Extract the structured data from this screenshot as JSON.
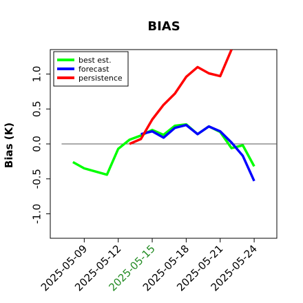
{
  "chart_data": {
    "type": "line",
    "title": "BIAS",
    "xlabel": "",
    "ylabel": "Bias (K)",
    "ylim": [
      -1.35,
      1.35
    ],
    "xlim": [
      "2025-05-06",
      "2025-05-26"
    ],
    "yticks": [
      -1.0,
      -0.5,
      0.0,
      0.5,
      1.0
    ],
    "ytick_labels": [
      "-1.0",
      "-0.5",
      "0.0",
      "0.5",
      "1.0"
    ],
    "xticks": [
      "2025-05-09",
      "2025-05-12",
      "2025-05-15",
      "2025-05-18",
      "2025-05-21",
      "2025-05-24"
    ],
    "xtick_label_colors": [
      "#000000",
      "#000000",
      "#228B22",
      "#000000",
      "#000000",
      "#000000"
    ],
    "zero_line": 0.0,
    "grid": false,
    "legend_position": "top-left",
    "series": [
      {
        "name": "best est.",
        "color": "#00ff00",
        "x": [
          "2025-05-08",
          "2025-05-09",
          "2025-05-11",
          "2025-05-12",
          "2025-05-13",
          "2025-05-14",
          "2025-05-15",
          "2025-05-16",
          "2025-05-17",
          "2025-05-18",
          "2025-05-19",
          "2025-05-20",
          "2025-05-21",
          "2025-05-22",
          "2025-05-23",
          "2025-05-24"
        ],
        "values": [
          -0.26,
          -0.35,
          -0.44,
          -0.07,
          0.06,
          0.12,
          0.2,
          0.13,
          0.26,
          0.28,
          0.14,
          0.25,
          0.17,
          -0.06,
          -0.02,
          -0.32
        ]
      },
      {
        "name": "forecast",
        "color": "#0000ff",
        "x": [
          "2025-05-14",
          "2025-05-15",
          "2025-05-16",
          "2025-05-17",
          "2025-05-18",
          "2025-05-19",
          "2025-05-20",
          "2025-05-21",
          "2025-05-22",
          "2025-05-23",
          "2025-05-24"
        ],
        "values": [
          0.14,
          0.18,
          0.09,
          0.23,
          0.27,
          0.14,
          0.25,
          0.18,
          0.02,
          -0.17,
          -0.53
        ]
      },
      {
        "name": "persistence",
        "color": "#ff0000",
        "x": [
          "2025-05-13",
          "2025-05-14",
          "2025-05-15",
          "2025-05-16",
          "2025-05-17",
          "2025-05-18",
          "2025-05-19",
          "2025-05-20",
          "2025-05-21",
          "2025-05-22"
        ],
        "values": [
          0.0,
          0.07,
          0.35,
          0.56,
          0.72,
          0.96,
          1.1,
          1.01,
          0.97,
          1.35
        ]
      }
    ]
  }
}
